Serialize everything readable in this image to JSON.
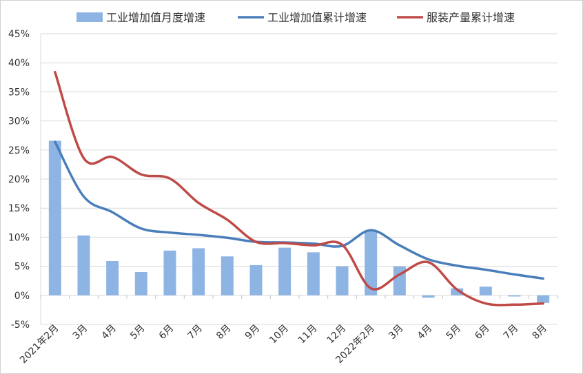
{
  "chart_data": {
    "type": "bar",
    "categories": [
      "2021年2月",
      "3月",
      "4月",
      "5月",
      "6月",
      "7月",
      "8月",
      "9月",
      "10月",
      "11月",
      "12月",
      "2022年2月",
      "3月",
      "4月",
      "5月",
      "6月",
      "7月",
      "8月"
    ],
    "ylim": [
      -5,
      45
    ],
    "yticks": [
      "-5%",
      "0%",
      "5%",
      "10%",
      "15%",
      "20%",
      "25%",
      "30%",
      "35%",
      "40%",
      "45%"
    ],
    "grid": true,
    "legend_position": "top",
    "series": [
      {
        "name": "工业增加值月度增速",
        "type": "bar",
        "color": "#8eb4e3",
        "values": [
          26.6,
          10.3,
          5.9,
          4.0,
          7.7,
          8.1,
          6.7,
          5.2,
          8.2,
          7.4,
          5.0,
          11.2,
          5.0,
          -0.4,
          1.2,
          1.5,
          -0.2,
          -1.3
        ]
      },
      {
        "name": "工业增加值累计增速",
        "type": "line",
        "color": "#4a7ebb",
        "values": [
          26.4,
          17.0,
          14.3,
          11.5,
          10.8,
          10.4,
          9.9,
          9.2,
          9.1,
          8.9,
          8.5,
          11.2,
          8.6,
          6.2,
          5.1,
          4.4,
          3.6,
          2.9
        ]
      },
      {
        "name": "服装产量累计增速",
        "type": "line",
        "color": "#be4b48",
        "values": [
          38.4,
          23.6,
          23.8,
          20.8,
          20.1,
          15.9,
          13.0,
          9.2,
          9.0,
          8.6,
          8.7,
          1.2,
          3.6,
          5.7,
          1.0,
          -1.4,
          -1.6,
          -1.4
        ]
      }
    ]
  }
}
